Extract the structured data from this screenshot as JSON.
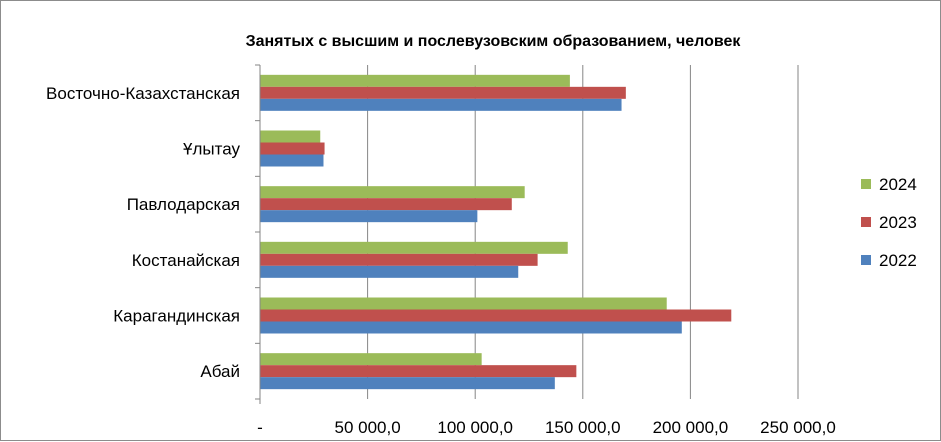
{
  "chart_data": {
    "type": "bar",
    "orientation": "horizontal",
    "title": "Занятых с высшим и послевузовским образованием, человек",
    "categories": [
      "Абай",
      "Карагандинская",
      "Костанайская",
      "Павлодарская",
      "Ұлытау",
      "Восточно-Казахстанская"
    ],
    "series": [
      {
        "name": "2022",
        "color": "#4f81bd",
        "values": [
          137000,
          196000,
          120000,
          101000,
          29500,
          168000
        ]
      },
      {
        "name": "2023",
        "color": "#c0504d",
        "values": [
          147000,
          219000,
          129000,
          117000,
          30000,
          170000
        ]
      },
      {
        "name": "2024",
        "color": "#9bbb59",
        "values": [
          103000,
          189000,
          143000,
          123000,
          28000,
          144000
        ]
      }
    ],
    "xlim": [
      0,
      250000
    ],
    "x_ticks": [
      0,
      50000,
      100000,
      150000,
      200000,
      250000
    ],
    "x_tick_labels": [
      "-",
      "50 000,0",
      "100 000,0",
      "150 000,0",
      "200 000,0",
      "250 000,0"
    ],
    "gridlines": true,
    "legend_position": "right"
  }
}
